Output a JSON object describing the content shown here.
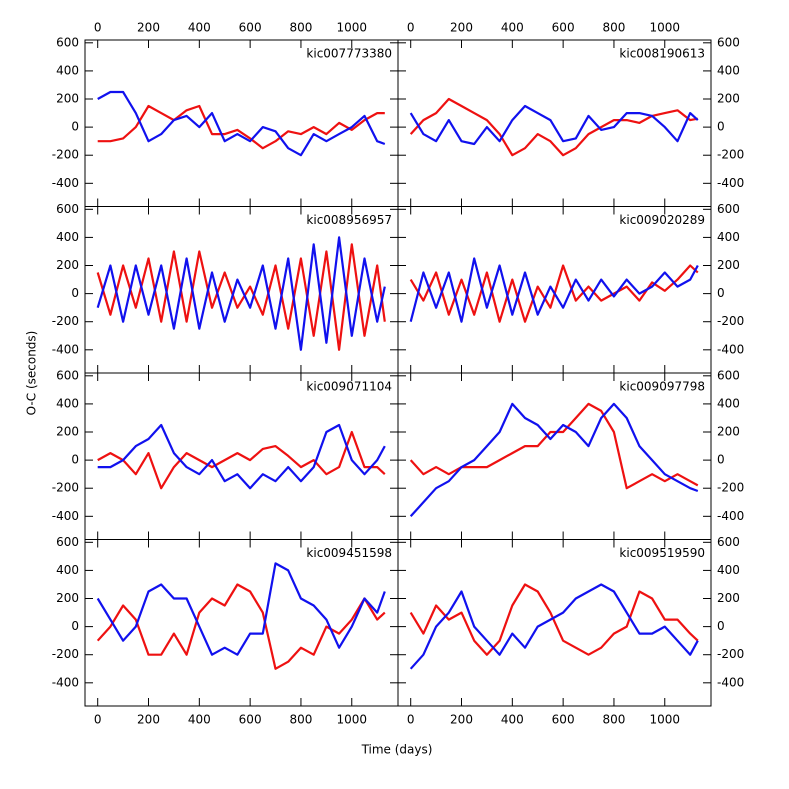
{
  "xlabel": "Time (days)",
  "ylabel": "O-C (seconds)",
  "chart_data": [
    {
      "type": "line",
      "title": "kic007773380",
      "x": [
        0,
        50,
        100,
        150,
        200,
        250,
        300,
        350,
        400,
        450,
        500,
        550,
        600,
        650,
        700,
        750,
        800,
        850,
        900,
        950,
        1000,
        1050,
        1100,
        1130
      ],
      "xlim": [
        -50,
        1182
      ],
      "ylim": [
        -565,
        620
      ],
      "xticks": [
        0,
        200,
        400,
        600,
        800,
        1000
      ],
      "yticks": [
        -400,
        -200,
        0,
        200,
        400,
        600
      ],
      "series": [
        {
          "color": "#ee1111",
          "values": [
            -100,
            -100,
            -80,
            0,
            150,
            100,
            50,
            120,
            150,
            -50,
            -50,
            -20,
            -80,
            -150,
            -100,
            -30,
            -50,
            0,
            -50,
            30,
            -20,
            50,
            100,
            100
          ]
        },
        {
          "color": "#1111ee",
          "values": [
            200,
            250,
            250,
            100,
            -100,
            -50,
            50,
            80,
            0,
            100,
            -100,
            -50,
            -100,
            0,
            -30,
            -150,
            -200,
            -50,
            -100,
            -50,
            0,
            80,
            -100,
            -120
          ]
        }
      ]
    },
    {
      "type": "line",
      "title": "kic008190613",
      "x": [
        0,
        50,
        100,
        150,
        200,
        250,
        300,
        350,
        400,
        450,
        500,
        550,
        600,
        650,
        700,
        750,
        800,
        850,
        900,
        950,
        1000,
        1050,
        1100,
        1130
      ],
      "xlim": [
        -50,
        1182
      ],
      "ylim": [
        -565,
        620
      ],
      "xticks": [
        0,
        200,
        400,
        600,
        800,
        1000
      ],
      "yticks": [
        -400,
        -200,
        0,
        200,
        400,
        600
      ],
      "series": [
        {
          "color": "#ee1111",
          "values": [
            -50,
            50,
            100,
            200,
            150,
            100,
            50,
            -50,
            -200,
            -150,
            -50,
            -100,
            -200,
            -150,
            -50,
            0,
            50,
            50,
            30,
            80,
            100,
            120,
            50,
            60
          ]
        },
        {
          "color": "#1111ee",
          "values": [
            100,
            -50,
            -100,
            50,
            -100,
            -120,
            0,
            -100,
            50,
            150,
            100,
            50,
            -100,
            -80,
            80,
            -20,
            0,
            100,
            100,
            80,
            0,
            -100,
            100,
            50
          ]
        }
      ]
    },
    {
      "type": "line",
      "title": "kic008956957",
      "x": [
        0,
        50,
        100,
        150,
        200,
        250,
        300,
        350,
        400,
        450,
        500,
        550,
        600,
        650,
        700,
        750,
        800,
        850,
        900,
        950,
        1000,
        1050,
        1100,
        1130
      ],
      "xlim": [
        -50,
        1182
      ],
      "ylim": [
        -565,
        620
      ],
      "xticks": [
        0,
        200,
        400,
        600,
        800,
        1000
      ],
      "yticks": [
        -400,
        -200,
        0,
        200,
        400,
        600
      ],
      "series": [
        {
          "color": "#ee1111",
          "values": [
            150,
            -150,
            200,
            -100,
            250,
            -200,
            300,
            -200,
            300,
            -100,
            150,
            -100,
            50,
            -150,
            200,
            -250,
            250,
            -300,
            300,
            -400,
            350,
            -300,
            200,
            -200
          ]
        },
        {
          "color": "#1111ee",
          "values": [
            -100,
            200,
            -200,
            200,
            -150,
            200,
            -250,
            250,
            -250,
            150,
            -200,
            100,
            -100,
            200,
            -250,
            250,
            -400,
            350,
            -350,
            400,
            -300,
            250,
            -200,
            50
          ]
        }
      ]
    },
    {
      "type": "line",
      "title": "kic009020289",
      "x": [
        0,
        50,
        100,
        150,
        200,
        250,
        300,
        350,
        400,
        450,
        500,
        550,
        600,
        650,
        700,
        750,
        800,
        850,
        900,
        950,
        1000,
        1050,
        1100,
        1130
      ],
      "xlim": [
        -50,
        1182
      ],
      "ylim": [
        -565,
        620
      ],
      "xticks": [
        0,
        200,
        400,
        600,
        800,
        1000
      ],
      "yticks": [
        -400,
        -200,
        0,
        200,
        400,
        600
      ],
      "series": [
        {
          "color": "#ee1111",
          "values": [
            100,
            -50,
            150,
            -150,
            100,
            -150,
            150,
            -200,
            100,
            -200,
            50,
            -100,
            200,
            -50,
            50,
            -50,
            0,
            50,
            -50,
            80,
            20,
            100,
            200,
            150
          ]
        },
        {
          "color": "#1111ee",
          "values": [
            -200,
            150,
            -100,
            150,
            -200,
            250,
            -100,
            200,
            -150,
            150,
            -150,
            50,
            -100,
            100,
            -50,
            100,
            -20,
            100,
            0,
            50,
            150,
            50,
            100,
            200
          ]
        }
      ]
    },
    {
      "type": "line",
      "title": "kic009071104",
      "x": [
        0,
        50,
        100,
        150,
        200,
        250,
        300,
        350,
        400,
        450,
        500,
        550,
        600,
        650,
        700,
        750,
        800,
        850,
        900,
        950,
        1000,
        1050,
        1100,
        1130
      ],
      "xlim": [
        -50,
        1182
      ],
      "ylim": [
        -565,
        620
      ],
      "xticks": [
        0,
        200,
        400,
        600,
        800,
        1000
      ],
      "yticks": [
        -400,
        -200,
        0,
        200,
        400,
        600
      ],
      "series": [
        {
          "color": "#ee1111",
          "values": [
            0,
            50,
            0,
            -100,
            50,
            -200,
            -50,
            50,
            0,
            -50,
            0,
            50,
            0,
            80,
            100,
            30,
            -50,
            0,
            -100,
            -50,
            200,
            -50,
            -50,
            -100
          ]
        },
        {
          "color": "#1111ee",
          "values": [
            -50,
            -50,
            0,
            100,
            150,
            250,
            50,
            -50,
            -100,
            0,
            -150,
            -100,
            -200,
            -100,
            -150,
            -50,
            -150,
            -50,
            200,
            250,
            0,
            -100,
            0,
            100
          ]
        }
      ]
    },
    {
      "type": "line",
      "title": "kic009097798",
      "x": [
        0,
        50,
        100,
        150,
        200,
        250,
        300,
        350,
        400,
        450,
        500,
        550,
        600,
        650,
        700,
        750,
        800,
        850,
        900,
        950,
        1000,
        1050,
        1100,
        1130
      ],
      "xlim": [
        -50,
        1182
      ],
      "ylim": [
        -565,
        620
      ],
      "xticks": [
        0,
        200,
        400,
        600,
        800,
        1000
      ],
      "yticks": [
        -400,
        -200,
        0,
        200,
        400,
        600
      ],
      "series": [
        {
          "color": "#ee1111",
          "values": [
            0,
            -100,
            -50,
            -100,
            -50,
            -50,
            -50,
            0,
            50,
            100,
            100,
            200,
            200,
            300,
            400,
            350,
            200,
            -200,
            -150,
            -100,
            -150,
            -100,
            -150,
            -180
          ]
        },
        {
          "color": "#1111ee",
          "values": [
            -400,
            -300,
            -200,
            -150,
            -50,
            0,
            100,
            200,
            400,
            300,
            250,
            150,
            250,
            200,
            100,
            300,
            400,
            300,
            100,
            0,
            -100,
            -150,
            -200,
            -220
          ]
        }
      ]
    },
    {
      "type": "line",
      "title": "kic009451598",
      "x": [
        0,
        50,
        100,
        150,
        200,
        250,
        300,
        350,
        400,
        450,
        500,
        550,
        600,
        650,
        700,
        750,
        800,
        850,
        900,
        950,
        1000,
        1050,
        1100,
        1130
      ],
      "xlim": [
        -50,
        1182
      ],
      "ylim": [
        -565,
        620
      ],
      "xticks": [
        0,
        200,
        400,
        600,
        800,
        1000
      ],
      "yticks": [
        -400,
        -200,
        0,
        200,
        400,
        600
      ],
      "series": [
        {
          "color": "#ee1111",
          "values": [
            -100,
            0,
            150,
            50,
            -200,
            -200,
            -50,
            -200,
            100,
            200,
            150,
            300,
            250,
            100,
            -300,
            -250,
            -150,
            -200,
            0,
            -50,
            50,
            200,
            50,
            100
          ]
        },
        {
          "color": "#1111ee",
          "values": [
            200,
            50,
            -100,
            0,
            250,
            300,
            200,
            200,
            0,
            -200,
            -150,
            -200,
            -50,
            -50,
            450,
            400,
            200,
            150,
            50,
            -150,
            0,
            200,
            100,
            250
          ]
        }
      ]
    },
    {
      "type": "line",
      "title": "kic009519590",
      "x": [
        0,
        50,
        100,
        150,
        200,
        250,
        300,
        350,
        400,
        450,
        500,
        550,
        600,
        650,
        700,
        750,
        800,
        850,
        900,
        950,
        1000,
        1050,
        1100,
        1130
      ],
      "xlim": [
        -50,
        1182
      ],
      "ylim": [
        -565,
        620
      ],
      "xticks": [
        0,
        200,
        400,
        600,
        800,
        1000
      ],
      "yticks": [
        -400,
        -200,
        0,
        200,
        400,
        600
      ],
      "series": [
        {
          "color": "#ee1111",
          "values": [
            100,
            -50,
            150,
            50,
            100,
            -100,
            -200,
            -100,
            150,
            300,
            250,
            100,
            -100,
            -150,
            -200,
            -150,
            -50,
            0,
            250,
            200,
            50,
            50,
            -50,
            -100
          ]
        },
        {
          "color": "#1111ee",
          "values": [
            -300,
            -200,
            0,
            100,
            250,
            0,
            -100,
            -200,
            -50,
            -150,
            0,
            50,
            100,
            200,
            250,
            300,
            250,
            100,
            -50,
            -50,
            0,
            -100,
            -200,
            -100
          ]
        }
      ]
    }
  ]
}
